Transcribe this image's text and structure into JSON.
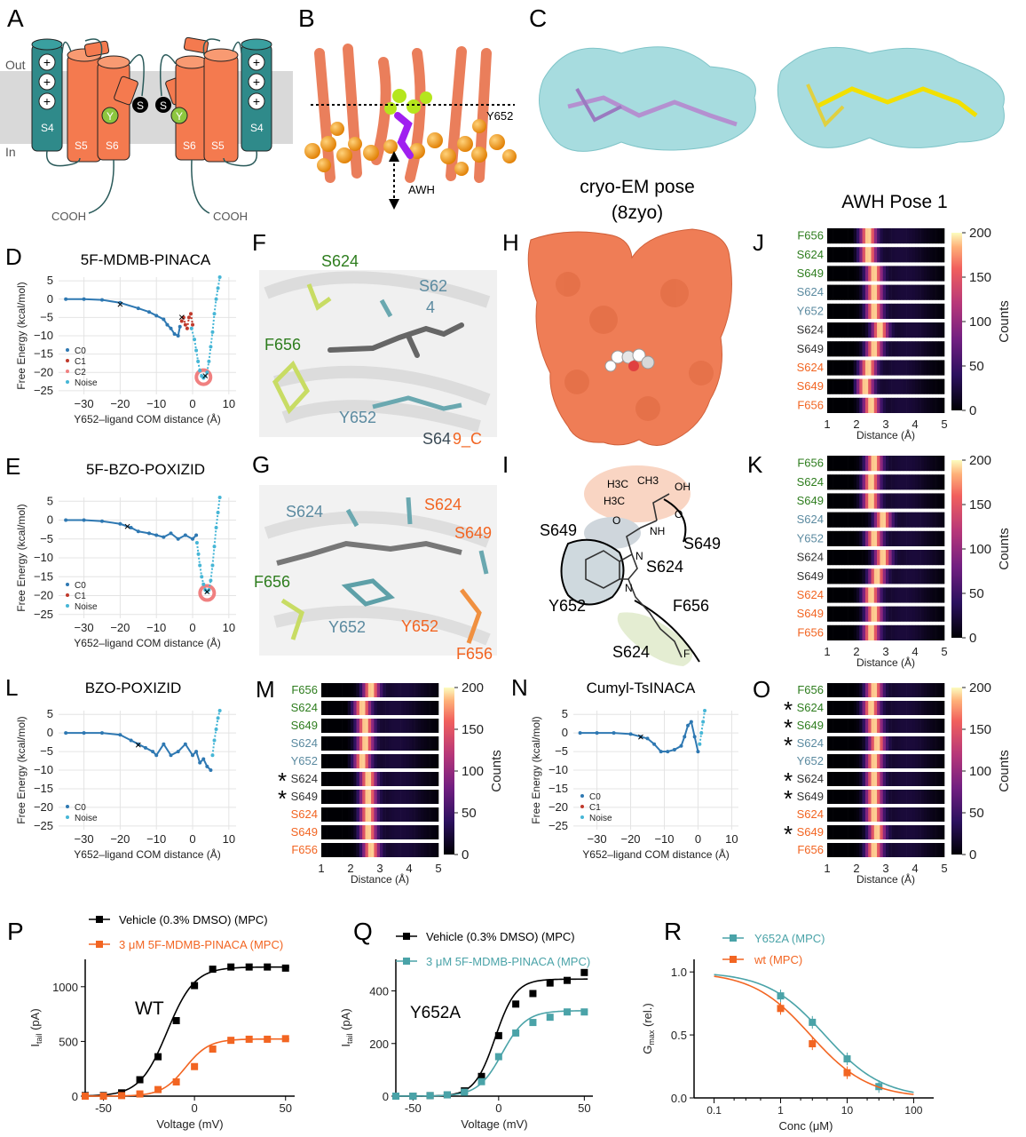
{
  "panels": {
    "A": {
      "letter": "A",
      "out": "Out",
      "in": "In",
      "s4": "S4",
      "s5": "S5",
      "s6": "S6",
      "s": "S",
      "y": "Y",
      "cooh": "COOH"
    },
    "B": {
      "letter": "B",
      "residue": "Y652",
      "method": "AWH"
    },
    "C": {
      "letter": "C",
      "left_caption_1": "cryo-EM pose",
      "left_caption_2": "(8zyo)",
      "right_caption": "AWH Pose 1"
    },
    "D": {
      "letter": "D",
      "title": "5F-MDMB-PINACA"
    },
    "E": {
      "letter": "E",
      "title": "5F-BZO-POXIZID"
    },
    "F": {
      "letter": "F",
      "labels": [
        "S624",
        "S62",
        "4",
        "F656",
        "Y652",
        "S64",
        "9_C"
      ]
    },
    "G": {
      "letter": "G",
      "labels": [
        "S624",
        "S624",
        "S649",
        "F656",
        "Y652",
        "Y652",
        "F656"
      ]
    },
    "H": {
      "letter": "H"
    },
    "I": {
      "letter": "I",
      "labels": [
        "S649",
        "S649",
        "S624",
        "Y652",
        "F656",
        "S624",
        "F"
      ],
      "chem": [
        "H3C",
        "CH3",
        "H3C",
        "OH",
        "O",
        "NH",
        "N",
        "N",
        "O"
      ]
    },
    "J": {
      "letter": "J"
    },
    "K": {
      "letter": "K"
    },
    "L": {
      "letter": "L",
      "title": "BZO-POXIZID"
    },
    "M": {
      "letter": "M"
    },
    "N": {
      "letter": "N",
      "title": "Cumyl-TsINACA"
    },
    "O": {
      "letter": "O"
    },
    "P": {
      "letter": "P",
      "label": "WT"
    },
    "Q": {
      "letter": "Q",
      "label": "Y652A"
    },
    "R": {
      "letter": "R"
    }
  },
  "colors": {
    "c0": "#2e78b2",
    "c1": "#c0392b",
    "noise": "#46b6d6",
    "orange": "#f26522",
    "teal": "#4aa3a8",
    "green": "#2e7d1e",
    "slate": "#5b8aa0",
    "dark": "#333333",
    "helix": "#f47a4f",
    "s4": "#2f8a8a"
  },
  "fe_common": {
    "ylabel": "Free Energy (kcal/mol)",
    "xlabel": "Y652–ligand COM distance (Å)",
    "xticks": [
      "−30",
      "−20",
      "−10",
      "0",
      "10"
    ],
    "yticks": [
      "5",
      "0",
      "−5",
      "−10",
      "−15",
      "−20",
      "−25"
    ]
  },
  "heat_common": {
    "xlabel": "Distance (Å)",
    "xticks": [
      "1",
      "2",
      "3",
      "4",
      "5"
    ],
    "cbar_label": "Counts",
    "cbar_ticks": [
      "200",
      "150",
      "100",
      "50",
      "0"
    ]
  },
  "ephys_common": {
    "xlabel": "Voltage (mV)",
    "ylabel_main": "I",
    "ylabel_sub": "tail",
    "ylabel_unit": " (pA)",
    "xticks": [
      "-50",
      "0",
      "50"
    ]
  },
  "chart_data": [
    {
      "type": "scatter",
      "panel": "D",
      "title": "5F-MDMB-PINACA",
      "xlabel": "Y652–ligand COM distance (Å)",
      "ylabel": "Free Energy (kcal/mol)",
      "xlim": [
        -37,
        12
      ],
      "ylim": [
        -26,
        6
      ],
      "legend": [
        "C0",
        "C1",
        "C2",
        "Noise"
      ],
      "legend_position": "bottom-left",
      "series": [
        {
          "name": "C0",
          "x": [
            -35,
            -30,
            -25,
            -20,
            -15,
            -12,
            -10,
            -8,
            -7,
            -6,
            -5,
            -4,
            -3.5
          ],
          "y": [
            0,
            0,
            -0.2,
            -1,
            -2.5,
            -3.5,
            -4.5,
            -5.5,
            -7,
            -8,
            -9.5,
            -10,
            -7.5
          ]
        },
        {
          "name": "C1",
          "x": [
            -3,
            -2.5,
            -2,
            -1.5,
            -1,
            -0.5,
            0
          ],
          "y": [
            -6,
            -5,
            -7,
            -8,
            -5,
            -4,
            -7
          ]
        },
        {
          "name": "C2",
          "x": [],
          "y": []
        },
        {
          "name": "Noise",
          "x": [
            -0.3,
            0.5,
            1,
            1.5,
            2,
            2.5,
            3,
            3.5,
            4,
            4.5,
            5,
            5.5,
            6,
            6.5,
            7,
            7.5
          ],
          "y": [
            -8,
            -11,
            -14,
            -17,
            -19.5,
            -21,
            -21.5,
            -21,
            -20,
            -17,
            -13,
            -9,
            -4,
            0,
            3,
            6
          ]
        }
      ],
      "markers": [
        {
          "x": -20,
          "y": -1.5
        },
        {
          "x": -3,
          "y": -5
        },
        {
          "x": 3.5,
          "y": -21
        }
      ],
      "circle": {
        "x": 3,
        "y": -21.3
      }
    },
    {
      "type": "scatter",
      "panel": "E",
      "title": "5F-BZO-POXIZID",
      "xlabel": "Y652–ligand COM distance (Å)",
      "ylabel": "Free Energy (kcal/mol)",
      "xlim": [
        -37,
        12
      ],
      "ylim": [
        -26,
        6
      ],
      "legend": [
        "C0",
        "C1",
        "Noise"
      ],
      "legend_position": "bottom-left",
      "series": [
        {
          "name": "C0",
          "x": [
            -35,
            -30,
            -25,
            -20,
            -17,
            -15,
            -12,
            -10,
            -8,
            -6,
            -4,
            -2,
            0,
            1
          ],
          "y": [
            0,
            0,
            -0.3,
            -1,
            -2,
            -3,
            -3.5,
            -4,
            -4.5,
            -3.5,
            -5,
            -4,
            -5,
            -4
          ]
        },
        {
          "name": "C1",
          "x": [],
          "y": []
        },
        {
          "name": "Noise",
          "x": [
            1.2,
            1.6,
            2,
            2.5,
            3,
            3.5,
            4,
            4.5,
            5,
            5.5,
            6,
            6.5,
            7,
            7.5
          ],
          "y": [
            -6,
            -9,
            -12,
            -15,
            -17,
            -18.5,
            -19,
            -18.5,
            -16,
            -12,
            -7,
            -2,
            2,
            6
          ]
        }
      ],
      "markers": [
        {
          "x": -18,
          "y": -1.8
        },
        {
          "x": 4,
          "y": -19
        }
      ],
      "circle": {
        "x": 4,
        "y": -19.3
      }
    },
    {
      "type": "scatter",
      "panel": "L",
      "title": "BZO-POXIZID",
      "xlabel": "Y652–ligand COM distance (Å)",
      "ylabel": "Free Energy (kcal/mol)",
      "xlim": [
        -37,
        12
      ],
      "ylim": [
        -26,
        6
      ],
      "legend": [
        "C0",
        "Noise"
      ],
      "legend_position": "bottom-left",
      "series": [
        {
          "name": "C0",
          "x": [
            -35,
            -30,
            -25,
            -20,
            -17,
            -15,
            -13,
            -11,
            -10,
            -8,
            -6,
            -4,
            -2,
            0,
            1,
            2,
            3,
            4,
            5
          ],
          "y": [
            0,
            0,
            0,
            -0.5,
            -2,
            -3,
            -4,
            -5,
            -6,
            -3,
            -6,
            -5,
            -3,
            -6,
            -5,
            -8,
            -7,
            -9,
            -10
          ]
        },
        {
          "name": "Noise",
          "x": [
            5.5,
            6,
            6.5,
            7,
            7.5
          ],
          "y": [
            -6,
            -2,
            1,
            4,
            6
          ]
        }
      ],
      "markers": [
        {
          "x": -15,
          "y": -3.3
        }
      ]
    },
    {
      "type": "scatter",
      "panel": "N",
      "title": "Cumyl-TsINACA",
      "xlabel": "Y652–ligand COM distance (Å)",
      "ylabel": "Free Energy (kcal/mol)",
      "xlim": [
        -37,
        12
      ],
      "ylim": [
        -26,
        6
      ],
      "legend": [
        "C0",
        "C1",
        "Noise"
      ],
      "legend_position": "bottom-left",
      "series": [
        {
          "name": "C0",
          "x": [
            -35,
            -30,
            -25,
            -20,
            -17,
            -15,
            -13,
            -11,
            -9,
            -7,
            -5,
            -4,
            -3,
            -2,
            -1,
            0
          ],
          "y": [
            0,
            0,
            0,
            -0.3,
            -1,
            -1.5,
            -3,
            -5,
            -5,
            -4.5,
            -3.5,
            -1,
            2,
            3,
            -1,
            -5
          ]
        },
        {
          "name": "C1",
          "x": [],
          "y": []
        },
        {
          "name": "Noise",
          "x": [
            0.5,
            1,
            1.5,
            2
          ],
          "y": [
            -3,
            0,
            3,
            6
          ]
        }
      ],
      "markers": [
        {
          "x": -17,
          "y": -1.2
        }
      ]
    },
    {
      "type": "heatmap",
      "panel": "J",
      "rows": [
        "F656",
        "S624",
        "S649",
        "S624",
        "Y652",
        "S624",
        "S649",
        "S624",
        "S649",
        "F656"
      ],
      "row_colors": [
        "green",
        "green",
        "green",
        "slate",
        "slate",
        "dark",
        "dark",
        "orange",
        "orange",
        "orange"
      ],
      "xlim": [
        1,
        5
      ],
      "colorbar": [
        0,
        200
      ],
      "peaks": [
        2.4,
        2.4,
        2.6,
        2.6,
        2.6,
        2.8,
        2.6,
        2.4,
        2.3,
        2.5
      ]
    },
    {
      "type": "heatmap",
      "panel": "K",
      "rows": [
        "F656",
        "S624",
        "S649",
        "S624",
        "Y652",
        "S624",
        "S649",
        "S624",
        "S649",
        "F656"
      ],
      "row_colors": [
        "green",
        "green",
        "green",
        "slate",
        "slate",
        "dark",
        "dark",
        "orange",
        "orange",
        "orange"
      ],
      "xlim": [
        1,
        5
      ],
      "colorbar": [
        0,
        200
      ],
      "peaks": [
        2.6,
        2.5,
        2.5,
        2.9,
        2.6,
        2.9,
        2.7,
        2.5,
        2.6,
        2.5
      ]
    },
    {
      "type": "heatmap",
      "panel": "M",
      "rows": [
        "F656",
        "S624",
        "S649",
        "S624",
        "Y652",
        "S624",
        "S649",
        "S624",
        "S649",
        "F656"
      ],
      "row_colors": [
        "green",
        "green",
        "green",
        "slate",
        "slate",
        "dark",
        "dark",
        "orange",
        "orange",
        "orange"
      ],
      "stars": [
        false,
        false,
        false,
        false,
        false,
        true,
        true,
        false,
        false,
        false
      ],
      "xlim": [
        1,
        5
      ],
      "colorbar": [
        0,
        200
      ],
      "peaks": [
        2.7,
        2.4,
        2.5,
        2.5,
        2.4,
        2.6,
        2.6,
        2.6,
        2.6,
        2.7
      ]
    },
    {
      "type": "heatmap",
      "panel": "O",
      "rows": [
        "F656",
        "S624",
        "S649",
        "S624",
        "Y652",
        "S624",
        "S649",
        "S624",
        "S649",
        "F656"
      ],
      "row_colors": [
        "green",
        "green",
        "green",
        "slate",
        "slate",
        "dark",
        "dark",
        "orange",
        "orange",
        "orange"
      ],
      "stars": [
        false,
        true,
        true,
        true,
        false,
        true,
        true,
        false,
        true,
        false
      ],
      "xlim": [
        1,
        5
      ],
      "colorbar": [
        0,
        200
      ],
      "peaks": [
        2.6,
        2.5,
        2.6,
        2.7,
        2.6,
        2.6,
        2.6,
        2.6,
        2.7,
        2.6
      ]
    },
    {
      "type": "line",
      "panel": "P",
      "label": "WT",
      "xlabel": "Voltage (mV)",
      "ylabel": "Itail (pA)",
      "xlim": [
        -60,
        55
      ],
      "ylim": [
        0,
        1250
      ],
      "yticks": [
        0,
        500,
        1000
      ],
      "series": [
        {
          "name": "Vehicle (0.3% DMSO) (MPC)",
          "color": "#000000",
          "x": [
            -60,
            -50,
            -40,
            -30,
            -20,
            -10,
            0,
            10,
            20,
            30,
            40,
            50
          ],
          "y": [
            5,
            5,
            30,
            150,
            360,
            690,
            1010,
            1160,
            1180,
            1180,
            1180,
            1170
          ]
        },
        {
          "name": "3 μM 5F-MDMB-PINACA (MPC)",
          "color": "#f26522",
          "x": [
            -60,
            -50,
            -40,
            -30,
            -20,
            -10,
            0,
            10,
            20,
            30,
            40,
            50
          ],
          "y": [
            0,
            0,
            5,
            20,
            60,
            130,
            270,
            430,
            510,
            520,
            520,
            525
          ]
        }
      ]
    },
    {
      "type": "line",
      "panel": "Q",
      "label": "Y652A",
      "xlabel": "Voltage (mV)",
      "ylabel": "Itail (pA)",
      "xlim": [
        -60,
        55
      ],
      "ylim": [
        0,
        520
      ],
      "yticks": [
        0,
        200,
        400
      ],
      "series": [
        {
          "name": "Vehicle (0.3% DMSO) (MPC)",
          "color": "#000000",
          "x": [
            -60,
            -50,
            -40,
            -30,
            -20,
            -10,
            0,
            10,
            20,
            30,
            40,
            50
          ],
          "y": [
            0,
            0,
            2,
            5,
            20,
            75,
            230,
            350,
            390,
            430,
            440,
            470
          ]
        },
        {
          "name": "3 μM 5F-MDMB-PINACA (MPC)",
          "color": "#4aa3a8",
          "x": [
            -60,
            -50,
            -40,
            -30,
            -20,
            -10,
            0,
            10,
            20,
            30,
            40,
            50
          ],
          "y": [
            0,
            0,
            2,
            5,
            15,
            55,
            150,
            240,
            280,
            300,
            320,
            320
          ]
        }
      ]
    },
    {
      "type": "line",
      "panel": "R",
      "xlabel": "Conc (μM)",
      "ylabel": "Gmax (rel.)",
      "xscale": "log",
      "xlim": [
        0.05,
        200
      ],
      "ylim": [
        0,
        1.1
      ],
      "xticks": [
        0.1,
        1,
        10,
        100
      ],
      "yticks": [
        0.0,
        0.5,
        1.0
      ],
      "series": [
        {
          "name": "Y652A (MPC)",
          "color": "#4aa3a8",
          "x": [
            1,
            3,
            10,
            30
          ],
          "y": [
            0.81,
            0.6,
            0.31,
            0.09
          ]
        },
        {
          "name": "wt (MPC)",
          "color": "#f26522",
          "x": [
            1,
            3,
            10
          ],
          "y": [
            0.71,
            0.43,
            0.2
          ]
        }
      ]
    }
  ]
}
